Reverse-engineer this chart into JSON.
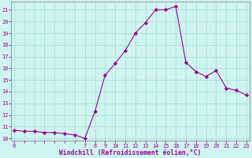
{
  "x": [
    0,
    1,
    2,
    3,
    4,
    5,
    6,
    7,
    8,
    9,
    10,
    11,
    12,
    13,
    14,
    15,
    16,
    17,
    18,
    19,
    20,
    21,
    22,
    23
  ],
  "y": [
    10.7,
    10.6,
    10.6,
    10.5,
    10.5,
    10.4,
    10.3,
    10.0,
    12.3,
    15.4,
    16.4,
    17.5,
    19.0,
    19.9,
    21.0,
    21.0,
    21.3,
    16.5,
    15.7,
    15.3,
    15.8,
    14.3,
    14.1,
    13.7
  ],
  "line_color": "#990099",
  "marker": "D",
  "marker_size": 2.2,
  "bg_color": "#cff5f0",
  "grid_color": "#a8ddd8",
  "xlabel": "Windchill (Refroidissement éolien,°C)",
  "xlabel_color": "#990099",
  "tick_color": "#990099",
  "spine_color": "#888888",
  "ylim": [
    9.8,
    21.7
  ],
  "yticks": [
    10,
    11,
    12,
    13,
    14,
    15,
    16,
    17,
    18,
    19,
    20,
    21
  ],
  "xtick_labels": [
    "0",
    "",
    "",
    "",
    "",
    "",
    "",
    "7",
    "8",
    "9",
    "10",
    "11",
    "12",
    "13",
    "14",
    "15",
    "16",
    "17",
    "18",
    "19",
    "20",
    "21",
    "22",
    "23"
  ],
  "xlim": [
    -0.3,
    23.3
  ]
}
